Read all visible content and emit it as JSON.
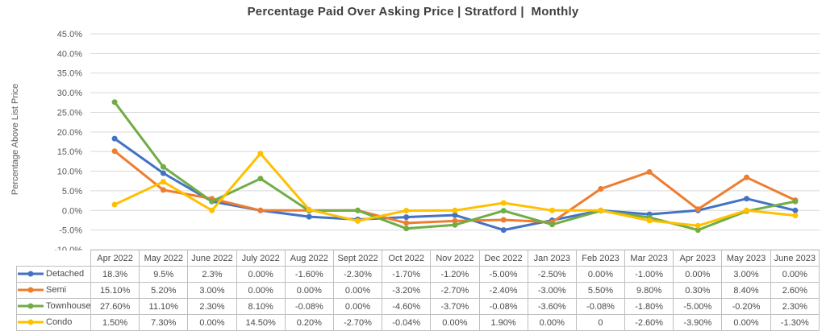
{
  "chart_data": {
    "type": "line",
    "title": "Percentage Paid Over Asking Price | Stratford |  Monthly",
    "ylabel": "Percentage Above List Price",
    "ylim": [
      -10,
      45
    ],
    "ytick_step": 5,
    "ytick_labels": [
      "45.0%",
      "40.0%",
      "35.0%",
      "30.0%",
      "25.0%",
      "20.0%",
      "15.0%",
      "10.0%",
      "5.0%",
      "0.0%",
      "-5.0%",
      "-10.0%"
    ],
    "grid": true,
    "gridline_color": "#d9d9d9",
    "table_border_color": "#bfbfbf",
    "legend_position": "data-table-row-headers",
    "categories": [
      "Apr 2022",
      "May 2022",
      "June 2022",
      "July 2022",
      "Aug 2022",
      "Sept 2022",
      "Oct 2022",
      "Nov 2022",
      "Dec 2022",
      "Jan 2023",
      "Feb 2023",
      "Mar 2023",
      "Apr 2023",
      "May 2023",
      "June 2023"
    ],
    "series": [
      {
        "name": "Detached",
        "color": "#4472C4",
        "values": [
          18.3,
          9.5,
          2.3,
          0.0,
          -1.6,
          -2.3,
          -1.7,
          -1.2,
          -5.0,
          -2.5,
          0.0,
          -1.0,
          0.0,
          3.0,
          0.0
        ],
        "display": [
          "18.3%",
          "9.5%",
          "2.3%",
          "0.00%",
          "-1.60%",
          "-2.30%",
          "-1.70%",
          "-1.20%",
          "-5.00%",
          "-2.50%",
          "0.00%",
          "-1.00%",
          "0.00%",
          "3.00%",
          "0.00%"
        ]
      },
      {
        "name": "Semi",
        "color": "#ED7D31",
        "values": [
          15.1,
          5.2,
          3.0,
          0.0,
          0.0,
          0.0,
          -3.2,
          -2.7,
          -2.4,
          -3.0,
          5.5,
          9.8,
          0.3,
          8.4,
          2.6
        ],
        "display": [
          "15.10%",
          "5.20%",
          "3.00%",
          "0.00%",
          "0.00%",
          "0.00%",
          "-3.20%",
          "-2.70%",
          "-2.40%",
          "-3.00%",
          "5.50%",
          "9.80%",
          "0.30%",
          "8.40%",
          "2.60%"
        ]
      },
      {
        "name": "Townhouse",
        "color": "#70AD47",
        "values": [
          27.6,
          11.1,
          2.3,
          8.1,
          -0.08,
          0.0,
          -4.6,
          -3.7,
          -0.08,
          -3.6,
          -0.08,
          -1.8,
          -5.0,
          -0.2,
          2.3
        ],
        "display": [
          "27.60%",
          "11.10%",
          "2.30%",
          "8.10%",
          "-0.08%",
          "0.00%",
          "-4.60%",
          "-3.70%",
          "-0.08%",
          "-3.60%",
          "-0.08%",
          "-1.80%",
          "-5.00%",
          "-0.20%",
          "2.30%"
        ]
      },
      {
        "name": "Condo",
        "color": "#FFC000",
        "values": [
          1.5,
          7.3,
          0.0,
          14.5,
          0.2,
          -2.7,
          -0.04,
          0.0,
          1.9,
          0.0,
          0,
          -2.6,
          -3.9,
          0.0,
          -1.3
        ],
        "display": [
          "1.50%",
          "7.30%",
          "0.00%",
          "14.50%",
          "0.20%",
          "-2.70%",
          "-0.04%",
          "0.00%",
          "1.90%",
          "0.00%",
          "0",
          "-2.60%",
          "-3.90%",
          "0.00%",
          "-1.30%"
        ]
      }
    ]
  }
}
